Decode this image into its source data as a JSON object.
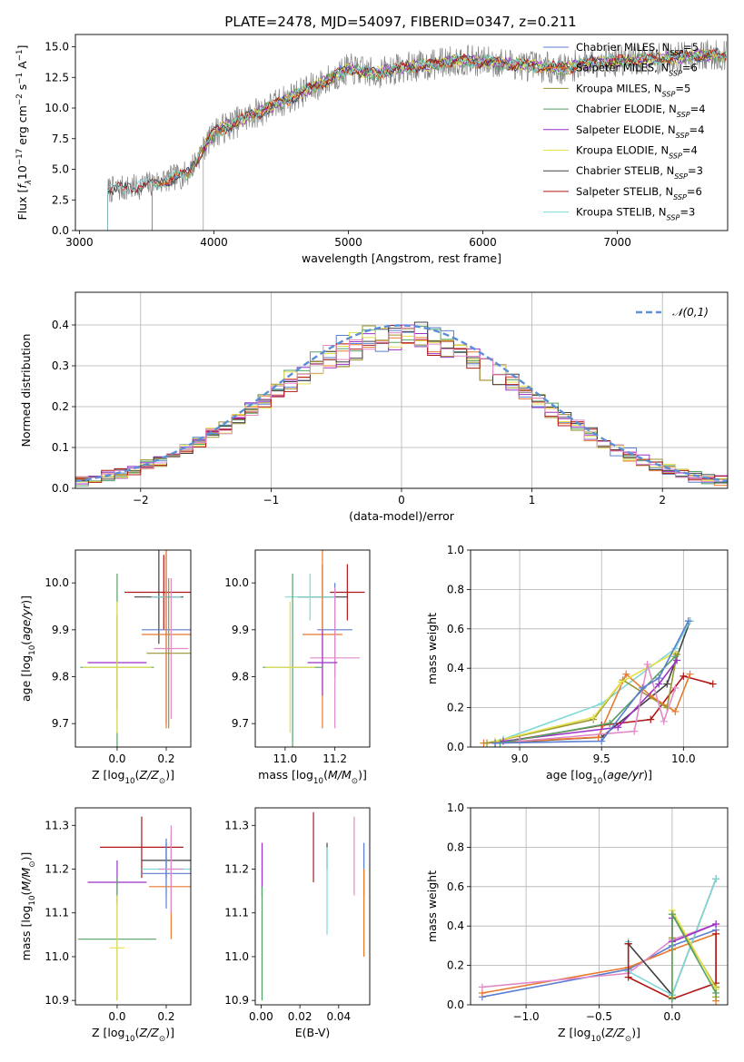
{
  "figure_title": "PLATE=2478, MJD=54097, FIBERID=0347, z=0.211",
  "chart_data": [
    {
      "id": "spectrum",
      "type": "line",
      "xlabel": "wavelength [Angstrom, rest frame]",
      "ylabel": "Flux [f_λ 10^-17 erg cm^-2 s^-1 A^-1]",
      "xlim": [
        2970,
        7820
      ],
      "ylim": [
        0,
        16
      ],
      "xticks": [
        3000,
        4000,
        5000,
        6000,
        7000
      ],
      "yticks": [
        0.0,
        2.5,
        5.0,
        7.5,
        10.0,
        12.5,
        15.0
      ],
      "grid": false,
      "legend_position": "top-right",
      "data_trend": [
        [
          3200,
          3.3
        ],
        [
          3400,
          3.5
        ],
        [
          3600,
          4.0
        ],
        [
          3800,
          4.6
        ],
        [
          4000,
          8.0
        ],
        [
          4200,
          9.0
        ],
        [
          4400,
          10.0
        ],
        [
          4600,
          11.0
        ],
        [
          4800,
          12.0
        ],
        [
          5000,
          13.2
        ],
        [
          5200,
          12.8
        ],
        [
          5400,
          13.3
        ],
        [
          5600,
          13.5
        ],
        [
          5800,
          13.9
        ],
        [
          6000,
          13.8
        ],
        [
          6200,
          13.6
        ],
        [
          6400,
          13.4
        ],
        [
          6600,
          13.2
        ],
        [
          6800,
          13.8
        ],
        [
          7000,
          13.8
        ],
        [
          7200,
          13.9
        ],
        [
          7400,
          14.1
        ],
        [
          7600,
          14.3
        ]
      ],
      "series": [
        {
          "name": "Chabrier MILES",
          "nssp": "5",
          "color": "#5b7fd0",
          "xmin": 3540
        },
        {
          "name": "Salpeter MILES",
          "nssp": "6",
          "color": "#e8792e",
          "xmin": 3540
        },
        {
          "name": "Kroupa MILES",
          "nssp": "5",
          "color": "#9a9530",
          "xmin": 3540
        },
        {
          "name": "Chabrier ELODIE",
          "nssp": "4",
          "color": "#55a064",
          "xmin": 3920
        },
        {
          "name": "Salpeter ELODIE",
          "nssp": "4",
          "color": "#9b30c8",
          "xmin": 3920
        },
        {
          "name": "Kroupa ELODIE",
          "nssp": "4",
          "color": "#e3e04a",
          "xmin": 3920
        },
        {
          "name": "Chabrier STELIB",
          "nssp": "3",
          "color": "#404040",
          "xmin": 3210
        },
        {
          "name": "Salpeter STELIB",
          "nssp": "6",
          "color": "#b01818",
          "xmin": 3210
        },
        {
          "name": "Kroupa STELIB",
          "nssp": "3",
          "color": "#80d8d8",
          "xmin": 3210
        }
      ]
    },
    {
      "id": "residuals",
      "type": "bar",
      "xlabel": "(data-model)/error",
      "ylabel": "Normed distribution",
      "xlim": [
        -2.5,
        2.5
      ],
      "ylim": [
        0,
        0.48
      ],
      "xticks": [
        -2,
        -1,
        0,
        1,
        2
      ],
      "yticks": [
        0.0,
        0.1,
        0.2,
        0.3,
        0.4
      ],
      "grid": true,
      "legend_position": "top-right",
      "gaussian_label": "𝒩(0,1)",
      "gaussian_color": "#5b8fd6",
      "bin_width": 0.1,
      "bin_start": -2.5,
      "colors": [
        "#5b7fd0",
        "#e8792e",
        "#9a9530",
        "#55a064",
        "#9b30c8",
        "#e3e04a",
        "#404040",
        "#b01818",
        "#e08ac8"
      ]
    },
    {
      "id": "Z-age",
      "type": "scatter",
      "xlabel": "Z [log10(Z/Z⊙)]",
      "ylabel": "age [log10(age/yr)]",
      "xlim": [
        -0.17,
        0.3
      ],
      "ylim": [
        9.65,
        10.07
      ],
      "xticks": [
        0.0,
        0.2
      ],
      "yticks": [
        9.7,
        9.8,
        9.9,
        10.0
      ],
      "points": [
        {
          "x": 0.19,
          "y": 9.98,
          "xerr": 0.16,
          "yerr": 0.08,
          "color": "#b01818"
        },
        {
          "x": 0.17,
          "y": 9.97,
          "xerr": 0.1,
          "yerr": 0.1,
          "color": "#404040"
        },
        {
          "x": 0.2,
          "y": 9.97,
          "xerr": 0.06,
          "yerr": 0.04,
          "color": "#80d8d8"
        },
        {
          "x": 0.2,
          "y": 9.9,
          "xerr": 0.1,
          "yerr": 0.2,
          "color": "#5b7fd0"
        },
        {
          "x": 0.2,
          "y": 9.89,
          "xerr": 0.1,
          "yerr": 0.2,
          "color": "#e8792e"
        },
        {
          "x": 0.22,
          "y": 9.86,
          "xerr": 0.07,
          "yerr": 0.15,
          "color": "#e08ac8"
        },
        {
          "x": 0.0,
          "y": 9.83,
          "xerr": 0.12,
          "yerr": 0.1,
          "color": "#9b30c8"
        },
        {
          "x": 0.0,
          "y": 9.82,
          "xerr": 0.15,
          "yerr": 0.2,
          "color": "#55a064"
        },
        {
          "x": 0.0,
          "y": 9.82,
          "xerr": 0.14,
          "yerr": 0.14,
          "color": "#e3e04a"
        },
        {
          "x": 0.21,
          "y": 9.85,
          "xerr": 0.09,
          "yerr": 0.16,
          "color": "#9a9530"
        }
      ]
    },
    {
      "id": "mass-age",
      "type": "scatter",
      "xlabel": "mass [log10(M/M⊙)]",
      "ylabel": "",
      "xlim": [
        10.88,
        11.34
      ],
      "ylim": [
        9.65,
        10.07
      ],
      "xticks": [
        11.0,
        11.2
      ],
      "yticks": [
        9.7,
        9.8,
        9.9,
        10.0
      ],
      "points": [
        {
          "x": 11.25,
          "y": 9.98,
          "xerr": 0.07,
          "yerr": 0.06,
          "color": "#b01818"
        },
        {
          "x": 11.15,
          "y": 9.97,
          "xerr": 0.1,
          "yerr": 0.07,
          "color": "#404040"
        },
        {
          "x": 11.1,
          "y": 9.97,
          "xerr": 0.1,
          "yerr": 0.05,
          "color": "#80d8d8"
        },
        {
          "x": 11.2,
          "y": 9.9,
          "xerr": 0.07,
          "yerr": 0.1,
          "color": "#5b7fd0"
        },
        {
          "x": 11.15,
          "y": 9.89,
          "xerr": 0.08,
          "yerr": 0.2,
          "color": "#e8792e"
        },
        {
          "x": 11.2,
          "y": 9.84,
          "xerr": 0.1,
          "yerr": 0.15,
          "color": "#e08ac8"
        },
        {
          "x": 11.15,
          "y": 9.83,
          "xerr": 0.06,
          "yerr": 0.07,
          "color": "#9b30c8"
        },
        {
          "x": 11.03,
          "y": 9.82,
          "xerr": 0.12,
          "yerr": 0.2,
          "color": "#55a064"
        },
        {
          "x": 11.02,
          "y": 9.82,
          "xerr": 0.1,
          "yerr": 0.14,
          "color": "#e3e04a"
        }
      ]
    },
    {
      "id": "age-weight",
      "type": "line",
      "xlabel": "age [log10(age/yr)]",
      "ylabel": "mass weight",
      "xlim": [
        8.7,
        10.27
      ],
      "ylim": [
        0,
        1
      ],
      "xticks": [
        9.0,
        9.5,
        10.0
      ],
      "yticks": [
        0.0,
        0.2,
        0.4,
        0.6,
        0.8,
        1.0
      ],
      "grid": true,
      "series": [
        {
          "color": "#404040",
          "x": [
            8.85,
            9.5,
            9.9,
            10.04
          ],
          "y": [
            0.02,
            0.05,
            0.32,
            0.64
          ]
        },
        {
          "color": "#80d8d8",
          "x": [
            8.9,
            9.5,
            9.95,
            10.04
          ],
          "y": [
            0.04,
            0.22,
            0.5,
            0.64
          ]
        },
        {
          "color": "#b01818",
          "x": [
            8.85,
            9.0,
            9.5,
            9.8,
            10.0,
            10.18
          ],
          "y": [
            0.02,
            0.04,
            0.11,
            0.14,
            0.36,
            0.32
          ]
        },
        {
          "color": "#e8792e",
          "x": [
            8.78,
            9.48,
            9.65,
            9.8,
            9.95,
            10.04
          ],
          "y": [
            0.02,
            0.05,
            0.37,
            0.26,
            0.18,
            0.37
          ]
        },
        {
          "color": "#9a9530",
          "x": [
            8.8,
            9.45,
            9.63,
            9.9,
            9.96
          ],
          "y": [
            0.02,
            0.14,
            0.34,
            0.2,
            0.47
          ]
        },
        {
          "color": "#e3e04a",
          "x": [
            8.85,
            9.45,
            9.62,
            9.95
          ],
          "y": [
            0.03,
            0.15,
            0.33,
            0.48
          ]
        },
        {
          "color": "#9b30c8",
          "x": [
            8.9,
            9.6,
            9.85,
            9.96
          ],
          "y": [
            0.03,
            0.1,
            0.32,
            0.44
          ]
        },
        {
          "color": "#55a064",
          "x": [
            8.88,
            9.55,
            9.95
          ],
          "y": [
            0.02,
            0.12,
            0.46
          ]
        },
        {
          "color": "#e08ac8",
          "x": [
            9.0,
            9.7,
            9.78,
            9.88,
            9.95
          ],
          "y": [
            0.03,
            0.08,
            0.42,
            0.13,
            0.3
          ]
        },
        {
          "color": "#5b7fd0",
          "x": [
            8.85,
            9.5,
            9.75,
            9.85,
            10.03
          ],
          "y": [
            0.02,
            0.03,
            0.3,
            0.35,
            0.64
          ]
        }
      ]
    },
    {
      "id": "Z-mass",
      "type": "scatter",
      "xlabel": "Z [log10(Z/Z⊙)]",
      "ylabel": "mass [log10(M/M⊙)]",
      "xlim": [
        -0.17,
        0.3
      ],
      "ylim": [
        10.89,
        11.34
      ],
      "xticks": [
        0.0,
        0.2
      ],
      "yticks": [
        10.9,
        11.0,
        11.1,
        11.2,
        11.3
      ],
      "points": [
        {
          "x": 0.1,
          "y": 11.25,
          "xerr": 0.17,
          "yerr": 0.07,
          "color": "#b01818"
        },
        {
          "x": 0.2,
          "y": 11.22,
          "xerr": 0.1,
          "yerr": 0.04,
          "color": "#404040"
        },
        {
          "x": 0.2,
          "y": 11.2,
          "xerr": 0.1,
          "yerr": 0.06,
          "color": "#80d8d8"
        },
        {
          "x": 0.2,
          "y": 11.19,
          "xerr": 0.1,
          "yerr": 0.08,
          "color": "#5b7fd0"
        },
        {
          "x": 0.22,
          "y": 11.16,
          "xerr": 0.09,
          "yerr": 0.12,
          "color": "#e8792e"
        },
        {
          "x": 0.22,
          "y": 11.2,
          "xerr": 0.05,
          "yerr": 0.1,
          "color": "#e08ac8"
        },
        {
          "x": 0.0,
          "y": 11.17,
          "xerr": 0.12,
          "yerr": 0.05,
          "color": "#9b30c8"
        },
        {
          "x": 0.0,
          "y": 11.04,
          "xerr": 0.16,
          "yerr": 0.14,
          "color": "#55a064"
        },
        {
          "x": 0.0,
          "y": 11.02,
          "xerr": 0.03,
          "yerr": 0.12,
          "color": "#e3e04a"
        }
      ]
    },
    {
      "id": "ebv-mass",
      "type": "scatter",
      "xlabel": "E(B-V)",
      "ylabel": "",
      "xlim": [
        -0.003,
        0.056
      ],
      "ylim": [
        10.89,
        11.34
      ],
      "xticks": [
        0.0,
        0.02,
        0.04
      ],
      "yticks": [
        10.9,
        11.0,
        11.1,
        11.2,
        11.3
      ],
      "points": [
        {
          "x": 0.0005,
          "y": 11.2,
          "yerr": 0.06,
          "color": "#9b30c8"
        },
        {
          "x": 0.0005,
          "y": 11.0,
          "yerr": 0.1,
          "color": "#e3e04a"
        },
        {
          "x": 0.0005,
          "y": 11.03,
          "yerr": 0.13,
          "color": "#55a064"
        },
        {
          "x": 0.027,
          "y": 11.25,
          "yerr": 0.08,
          "color": "#b01818"
        },
        {
          "x": 0.034,
          "y": 11.23,
          "yerr": 0.03,
          "color": "#404040"
        },
        {
          "x": 0.034,
          "y": 11.15,
          "yerr": 0.1,
          "color": "#80d8d8"
        },
        {
          "x": 0.048,
          "y": 11.23,
          "yerr": 0.09,
          "color": "#e08ac8"
        },
        {
          "x": 0.053,
          "y": 11.2,
          "yerr": 0.06,
          "color": "#5b7fd0"
        },
        {
          "x": 0.053,
          "y": 11.1,
          "yerr": 0.1,
          "color": "#e8792e"
        }
      ]
    },
    {
      "id": "Z-weight",
      "type": "line",
      "xlabel": "Z [log10(Z/Z⊙)]",
      "ylabel": "mass weight",
      "xlim": [
        -1.38,
        0.38
      ],
      "ylim": [
        0,
        1
      ],
      "xticks": [
        -1.0,
        -0.5,
        0.0
      ],
      "yticks": [
        0.0,
        0.2,
        0.4,
        0.6,
        0.8,
        1.0
      ],
      "grid": true,
      "series": [
        {
          "color": "#5b7fd0",
          "x": [
            -1.3,
            -0.3,
            0.0,
            0.3
          ],
          "y": [
            0.04,
            0.18,
            0.3,
            0.38
          ]
        },
        {
          "color": "#e8792e",
          "x": [
            -1.3,
            -0.3,
            0.0,
            0.3,
            0.3
          ],
          "y": [
            0.06,
            0.19,
            0.28,
            0.36,
            0.02
          ]
        },
        {
          "color": "#e08ac8",
          "x": [
            -1.3,
            -0.3,
            0.0,
            0.3
          ],
          "y": [
            0.09,
            0.16,
            0.33,
            0.41
          ]
        },
        {
          "color": "#404040",
          "x": [
            -0.3,
            0.0,
            0.3
          ],
          "y": [
            0.31,
            0.05,
            0.64
          ]
        },
        {
          "color": "#80d8d8",
          "x": [
            -0.3,
            -0.3,
            0.0,
            0.3
          ],
          "y": [
            0.32,
            0.17,
            0.05,
            0.64
          ]
        },
        {
          "color": "#b01818",
          "x": [
            -0.3,
            -0.3,
            0.0,
            0.3,
            0.3
          ],
          "y": [
            0.31,
            0.14,
            0.03,
            0.11,
            0.36
          ]
        },
        {
          "color": "#9a9530",
          "x": [
            0.0,
            0.0,
            0.3,
            0.3
          ],
          "y": [
            0.34,
            0.46,
            0.09,
            0.04
          ]
        },
        {
          "color": "#e3e04a",
          "x": [
            0.0,
            0.0,
            0.3
          ],
          "y": [
            0.04,
            0.48,
            0.08
          ]
        },
        {
          "color": "#9b30c8",
          "x": [
            0.0,
            0.0,
            0.3
          ],
          "y": [
            0.44,
            0.32,
            0.41
          ]
        },
        {
          "color": "#55a064",
          "x": [
            0.0,
            0.0,
            0.3
          ],
          "y": [
            0.03,
            0.46,
            0.06
          ]
        }
      ]
    }
  ]
}
